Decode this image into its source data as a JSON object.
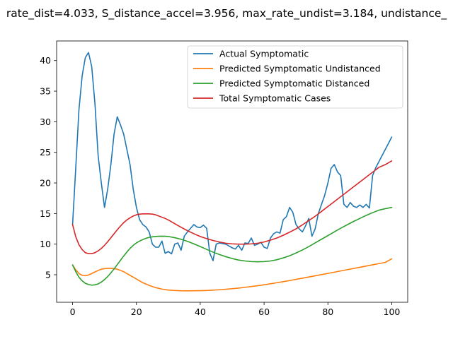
{
  "chart_data": {
    "type": "line",
    "title": "rate_dist=4.033, S_distance_accel=3.956, max_rate_undist=3.184, undistance_",
    "xlabel": "",
    "ylabel": "",
    "xlim": [
      -5,
      105
    ],
    "ylim": [
      0.5,
      43.2
    ],
    "xticks": [
      0,
      20,
      40,
      60,
      80,
      100
    ],
    "yticks": [
      5,
      10,
      15,
      20,
      25,
      30,
      35,
      40
    ],
    "grid": false,
    "legend_position": "top-right",
    "series": [
      {
        "name": "Actual Symptomatic",
        "color": "#1f77b4",
        "x": [
          0,
          1,
          2,
          3,
          4,
          5,
          6,
          7,
          8,
          9,
          10,
          11,
          12,
          13,
          14,
          15,
          16,
          17,
          18,
          19,
          20,
          21,
          22,
          23,
          24,
          25,
          26,
          27,
          28,
          29,
          30,
          31,
          32,
          33,
          34,
          35,
          36,
          37,
          38,
          39,
          40,
          41,
          42,
          43,
          44,
          45,
          46,
          47,
          48,
          49,
          50,
          51,
          52,
          53,
          54,
          55,
          56,
          57,
          58,
          59,
          60,
          61,
          62,
          63,
          64,
          65,
          66,
          67,
          68,
          69,
          70,
          71,
          72,
          73,
          74,
          75,
          76,
          77,
          78,
          79,
          80,
          81,
          82,
          83,
          84,
          85,
          86,
          87,
          88,
          89,
          90,
          91,
          92,
          93,
          94,
          95,
          96,
          97,
          98,
          99,
          100
        ],
        "y": [
          13.2,
          22.5,
          32,
          37.5,
          40.5,
          41.3,
          39,
          33,
          24.5,
          20,
          16,
          19,
          23,
          28,
          30.8,
          29.5,
          28,
          25.5,
          23,
          19,
          16,
          14,
          13.2,
          12.8,
          12,
          10,
          9.5,
          9.5,
          10.5,
          8.5,
          8.8,
          8.4,
          10,
          10.2,
          9,
          11.3,
          12,
          12.6,
          13.2,
          12.8,
          12.7,
          13.1,
          12.6,
          8.5,
          7.3,
          10,
          10.2,
          10.1,
          10,
          9.7,
          9.4,
          9.2,
          9.8,
          9,
          10.2,
          10.1,
          11,
          9.8,
          10,
          10.3,
          9.5,
          9.3,
          11,
          11.7,
          12,
          11.8,
          14,
          14.5,
          16,
          15.2,
          13.2,
          12.5,
          12,
          13,
          14.2,
          11.3,
          12.5,
          15,
          16.5,
          18,
          20,
          22.4,
          23,
          21.8,
          21.2,
          16.5,
          16,
          16.8,
          16.2,
          16,
          16.4,
          16,
          16.5,
          15.9,
          21.2,
          22.5,
          23.5,
          24.5,
          25.5,
          26.5,
          27.5
        ]
      },
      {
        "name": "Predicted Symptomatic Undistanced",
        "color": "#ff7f0e",
        "x": [
          0,
          1,
          2,
          3,
          4,
          5,
          6,
          7,
          8,
          9,
          10,
          11,
          12,
          13,
          14,
          15,
          16,
          17,
          18,
          19,
          20,
          22,
          24,
          26,
          28,
          30,
          32,
          34,
          36,
          38,
          40,
          42,
          44,
          46,
          48,
          50,
          52,
          54,
          56,
          58,
          60,
          62,
          64,
          66,
          68,
          70,
          72,
          74,
          76,
          78,
          80,
          82,
          84,
          86,
          88,
          90,
          92,
          94,
          96,
          98,
          100
        ],
        "y": [
          6.6,
          5.8,
          5.2,
          4.9,
          4.85,
          4.95,
          5.2,
          5.45,
          5.7,
          5.9,
          6,
          6.05,
          6.05,
          6,
          5.9,
          5.7,
          5.5,
          5.2,
          4.9,
          4.6,
          4.3,
          3.7,
          3.25,
          2.9,
          2.65,
          2.5,
          2.42,
          2.38,
          2.37,
          2.38,
          2.4,
          2.43,
          2.48,
          2.55,
          2.63,
          2.72,
          2.82,
          2.94,
          3.07,
          3.21,
          3.36,
          3.52,
          3.69,
          3.87,
          4.05,
          4.24,
          4.43,
          4.63,
          4.82,
          5.02,
          5.22,
          5.42,
          5.62,
          5.82,
          6.02,
          6.22,
          6.42,
          6.62,
          6.82,
          7.02,
          7.6
        ]
      },
      {
        "name": "Predicted Symptomatic Distanced",
        "color": "#2ca02c",
        "x": [
          0,
          1,
          2,
          3,
          4,
          5,
          6,
          7,
          8,
          9,
          10,
          11,
          12,
          13,
          14,
          15,
          16,
          17,
          18,
          19,
          20,
          21,
          22,
          23,
          24,
          25,
          26,
          27,
          28,
          29,
          30,
          32,
          34,
          36,
          38,
          40,
          42,
          44,
          46,
          48,
          50,
          52,
          54,
          56,
          58,
          60,
          62,
          64,
          66,
          68,
          70,
          72,
          74,
          76,
          78,
          80,
          82,
          84,
          86,
          88,
          90,
          92,
          94,
          96,
          98,
          100
        ],
        "y": [
          6.6,
          5.5,
          4.6,
          4,
          3.6,
          3.4,
          3.3,
          3.35,
          3.5,
          3.8,
          4.2,
          4.7,
          5.3,
          5.95,
          6.65,
          7.35,
          8.05,
          8.7,
          9.3,
          9.8,
          10.2,
          10.5,
          10.75,
          10.95,
          11.1,
          11.2,
          11.25,
          11.28,
          11.3,
          11.28,
          11.25,
          11.05,
          10.8,
          10.45,
          10.05,
          9.6,
          9.15,
          8.7,
          8.3,
          7.95,
          7.65,
          7.4,
          7.25,
          7.15,
          7.12,
          7.15,
          7.25,
          7.45,
          7.75,
          8.1,
          8.55,
          9.05,
          9.6,
          10.2,
          10.8,
          11.4,
          12,
          12.6,
          13.15,
          13.7,
          14.2,
          14.7,
          15.15,
          15.55,
          15.8,
          16
        ]
      },
      {
        "name": "Total Symptomatic Cases",
        "color": "#d62728",
        "x": [
          0,
          1,
          2,
          3,
          4,
          5,
          6,
          7,
          8,
          9,
          10,
          11,
          12,
          13,
          14,
          15,
          16,
          17,
          18,
          19,
          20,
          21,
          22,
          23,
          24,
          25,
          26,
          27,
          28,
          29,
          30,
          32,
          34,
          36,
          38,
          40,
          42,
          44,
          46,
          48,
          50,
          52,
          54,
          56,
          58,
          60,
          62,
          64,
          66,
          68,
          70,
          72,
          74,
          76,
          78,
          80,
          82,
          84,
          86,
          88,
          90,
          92,
          94,
          96,
          98,
          100
        ],
        "y": [
          13.2,
          11.2,
          9.9,
          9.1,
          8.6,
          8.45,
          8.45,
          8.6,
          8.9,
          9.3,
          9.8,
          10.4,
          11.05,
          11.7,
          12.35,
          12.95,
          13.5,
          13.95,
          14.3,
          14.6,
          14.8,
          14.9,
          14.95,
          14.95,
          14.95,
          14.9,
          14.8,
          14.6,
          14.4,
          14.2,
          13.95,
          13.35,
          12.75,
          12.2,
          11.7,
          11.25,
          10.9,
          10.6,
          10.35,
          10.15,
          10.05,
          10,
          10,
          10.05,
          10.15,
          10.35,
          10.65,
          11,
          11.45,
          11.95,
          12.5,
          13.15,
          13.85,
          14.55,
          15.35,
          16.15,
          16.95,
          17.75,
          18.55,
          19.35,
          20.15,
          20.95,
          21.75,
          22.55,
          23,
          23.6
        ]
      }
    ]
  }
}
